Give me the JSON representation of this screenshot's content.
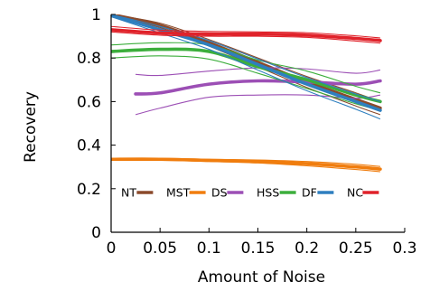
{
  "chart_data": {
    "type": "line",
    "xlabel": "Amount of Noise",
    "ylabel": "Recovery",
    "xlim": [
      0,
      0.3
    ],
    "ylim": [
      0,
      1
    ],
    "xticks": [
      0,
      0.05,
      0.1,
      0.15,
      0.2,
      0.25,
      0.3
    ],
    "xtick_labels": [
      "0",
      "0.05",
      "0.1",
      "0.15",
      "0.2",
      "0.25",
      "0.3"
    ],
    "yticks": [
      0,
      0.2,
      0.4,
      0.6,
      0.8,
      1
    ],
    "ytick_labels": [
      "0",
      "0.2",
      "0.4",
      "0.6",
      "0.8",
      "1"
    ],
    "grid": false,
    "legend_position": "bottom, inside plot, single row",
    "series": [
      {
        "name": "NT",
        "color": "#8b4a2b",
        "x": [
          0,
          0.05,
          0.1,
          0.15,
          0.2,
          0.25,
          0.275
        ],
        "values": [
          1.0,
          0.95,
          0.87,
          0.78,
          0.69,
          0.61,
          0.57
        ],
        "ci_lower": [
          0.995,
          0.94,
          0.855,
          0.76,
          0.665,
          0.58,
          0.54
        ],
        "ci_upper": [
          1.0,
          0.96,
          0.885,
          0.8,
          0.715,
          0.64,
          0.6
        ]
      },
      {
        "name": "MST",
        "color": "#f07d0e",
        "x": [
          0,
          0.05,
          0.1,
          0.15,
          0.2,
          0.25,
          0.275
        ],
        "values": [
          0.335,
          0.335,
          0.33,
          0.325,
          0.315,
          0.3,
          0.29
        ],
        "ci_lower": [
          0.33,
          0.33,
          0.325,
          0.318,
          0.305,
          0.288,
          0.278
        ],
        "ci_upper": [
          0.34,
          0.34,
          0.335,
          0.332,
          0.325,
          0.312,
          0.302
        ]
      },
      {
        "name": "DS",
        "color": "#9c4fb5",
        "x": [
          0.025,
          0.05,
          0.1,
          0.15,
          0.2,
          0.25,
          0.275
        ],
        "values": [
          0.635,
          0.64,
          0.68,
          0.695,
          0.69,
          0.68,
          0.695
        ],
        "ci_lower": [
          0.54,
          0.57,
          0.62,
          0.63,
          0.63,
          0.615,
          0.63
        ],
        "ci_upper": [
          0.725,
          0.72,
          0.74,
          0.755,
          0.75,
          0.73,
          0.745
        ]
      },
      {
        "name": "HSS",
        "color": "#3cae3c",
        "x": [
          0,
          0.05,
          0.1,
          0.15,
          0.2,
          0.25,
          0.275
        ],
        "values": [
          0.83,
          0.84,
          0.83,
          0.76,
          0.7,
          0.63,
          0.6
        ],
        "ci_lower": [
          0.8,
          0.81,
          0.795,
          0.73,
          0.66,
          0.59,
          0.56
        ],
        "ci_upper": [
          0.86,
          0.87,
          0.86,
          0.79,
          0.74,
          0.67,
          0.64
        ]
      },
      {
        "name": "DF",
        "color": "#2e7fbf",
        "x": [
          0,
          0.05,
          0.1,
          0.15,
          0.2,
          0.25,
          0.275
        ],
        "values": [
          0.995,
          0.93,
          0.86,
          0.77,
          0.68,
          0.6,
          0.56
        ],
        "ci_lower": [
          0.99,
          0.915,
          0.84,
          0.745,
          0.65,
          0.565,
          0.52
        ],
        "ci_upper": [
          1.0,
          0.945,
          0.88,
          0.795,
          0.71,
          0.635,
          0.6
        ]
      },
      {
        "name": "NC",
        "color": "#e0222a",
        "x": [
          0,
          0.05,
          0.1,
          0.15,
          0.2,
          0.25,
          0.275
        ],
        "values": [
          0.93,
          0.915,
          0.91,
          0.91,
          0.905,
          0.89,
          0.88
        ],
        "ci_lower": [
          0.92,
          0.905,
          0.9,
          0.9,
          0.895,
          0.878,
          0.868
        ],
        "ci_upper": [
          0.945,
          0.928,
          0.922,
          0.92,
          0.916,
          0.902,
          0.892
        ]
      }
    ]
  }
}
